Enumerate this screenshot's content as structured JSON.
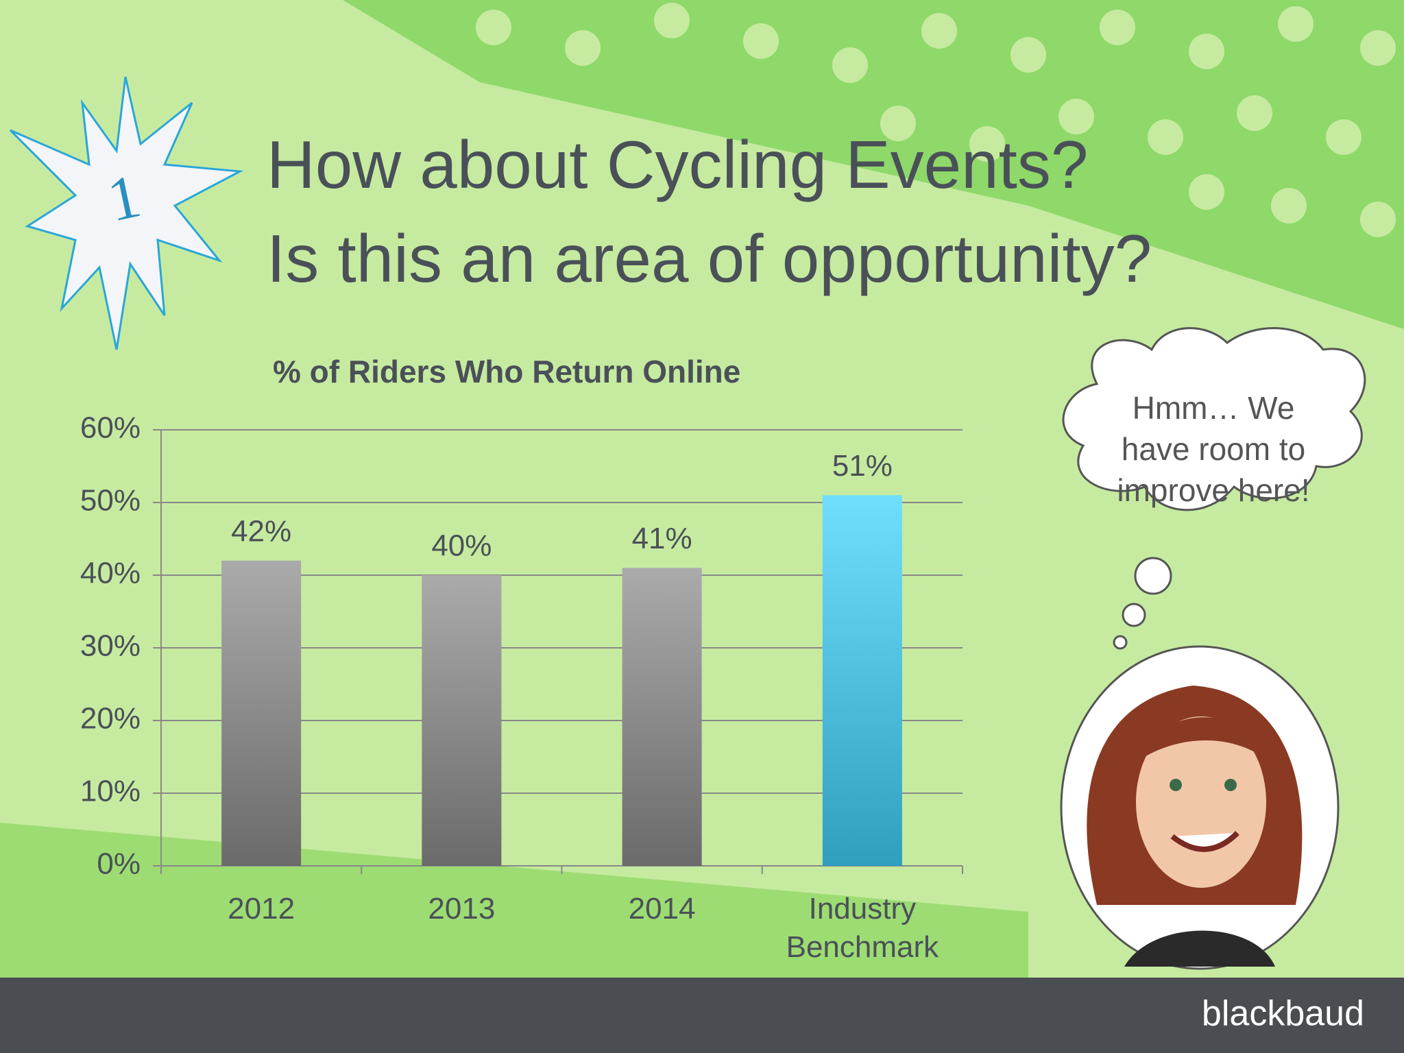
{
  "slide": {
    "title_lines": [
      "How about Cycling Events?",
      "Is this an area of opportunity?"
    ],
    "badge": "1",
    "thought": "Hmm… We have room to improve here!",
    "logo": "blackbaud"
  },
  "chart_data": {
    "type": "bar",
    "title": "% of Riders Who Return Online",
    "categories": [
      "2012",
      "2013",
      "2014",
      "Industry Benchmark"
    ],
    "values": [
      42,
      40,
      41,
      51
    ],
    "value_labels": [
      "42%",
      "40%",
      "41%",
      "51%"
    ],
    "colors": [
      "#8e8e8e",
      "#8e8e8e",
      "#8e8e8e",
      "#3fd3ff"
    ],
    "ylim": [
      0,
      60
    ],
    "yticks": [
      {
        "value": 0,
        "label": "0%"
      },
      {
        "value": 10,
        "label": "10%"
      },
      {
        "value": 20,
        "label": "20%"
      },
      {
        "value": 30,
        "label": "30%"
      },
      {
        "value": 40,
        "label": "40%"
      },
      {
        "value": 50,
        "label": "50%"
      },
      {
        "value": 60,
        "label": "60%"
      }
    ],
    "grid": true
  }
}
